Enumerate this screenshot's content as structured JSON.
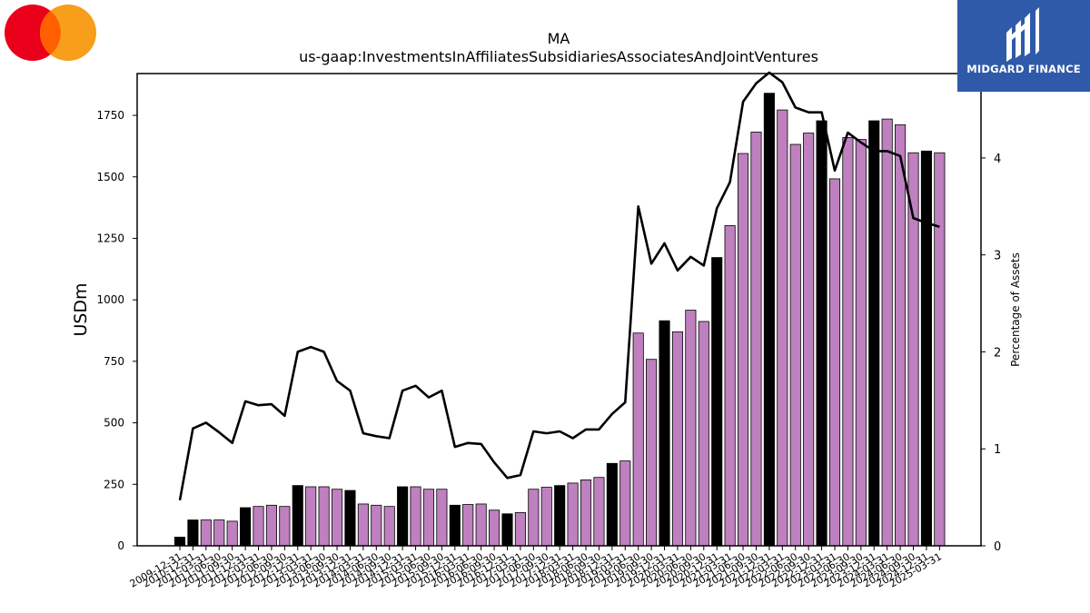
{
  "logo_left": {
    "icon": "mastercard-logo-icon",
    "colors": {
      "left": "#eb001b",
      "right": "#f79e1b",
      "overlap": "#ff5f00"
    }
  },
  "brand": {
    "name": "MIDGARD FINANCE",
    "icon": "midgard-logo-icon",
    "background": "#2f5aaa"
  },
  "chart_data": {
    "type": "bar",
    "title": "MA",
    "subtitle": "us-gaap:InvestmentsInAffiliatesSubsidiariesAssociatesAndJointVentures",
    "ylabel": "USDm",
    "y2label": "Percentage of Assets",
    "ylim": [
      0,
      1920
    ],
    "y2lim": [
      0,
      4.87
    ],
    "yticks": [
      0,
      250,
      500,
      750,
      1000,
      1250,
      1500,
      1750
    ],
    "y2ticks": [
      0,
      1,
      2,
      3,
      4
    ],
    "grid": false,
    "legend": "none",
    "colors": {
      "annual_bar": "#000000",
      "quarter_bar": "#bf80bf",
      "line": "#000000"
    },
    "categories": [
      "2009-12-31",
      "2010-12-31",
      "2011-03-31",
      "2011-06-30",
      "2011-09-30",
      "2011-12-31",
      "2012-03-31",
      "2012-06-30",
      "2012-09-30",
      "2012-12-31",
      "2013-03-31",
      "2013-06-30",
      "2013-09-30",
      "2013-12-31",
      "2014-03-31",
      "2014-06-30",
      "2014-09-30",
      "2014-12-31",
      "2015-03-31",
      "2015-06-30",
      "2015-09-30",
      "2015-12-31",
      "2016-03-31",
      "2016-06-30",
      "2016-09-30",
      "2016-12-31",
      "2017-03-31",
      "2017-06-30",
      "2017-09-30",
      "2017-12-31",
      "2018-03-31",
      "2018-06-30",
      "2018-09-30",
      "2018-12-31",
      "2019-03-31",
      "2019-06-30",
      "2019-09-30",
      "2019-12-31",
      "2020-03-31",
      "2020-06-30",
      "2020-09-30",
      "2020-12-31",
      "2021-03-31",
      "2021-06-30",
      "2021-09-30",
      "2021-12-31",
      "2022-03-31",
      "2022-06-30",
      "2022-09-30",
      "2022-12-31",
      "2023-03-31",
      "2023-06-30",
      "2023-09-30",
      "2023-12-31",
      "2024-03-31",
      "2024-06-30",
      "2024-09-30",
      "2024-12-31",
      "2025-03-31"
    ],
    "series": [
      {
        "kind": "bar",
        "values": [
          35,
          105,
          105,
          105,
          100,
          155,
          160,
          165,
          160,
          245,
          240,
          240,
          230,
          225,
          170,
          165,
          160,
          240,
          240,
          230,
          230,
          165,
          168,
          170,
          145,
          130,
          135,
          230,
          238,
          245,
          255,
          268,
          278,
          335,
          345,
          865,
          758,
          915,
          870,
          958,
          912,
          1172,
          1302,
          1595,
          1682,
          1840,
          1772,
          1632,
          1678,
          1728,
          1492,
          1660,
          1652,
          1728,
          1735,
          1712,
          1598,
          1605,
          1598
        ],
        "annual": [
          true,
          true,
          false,
          false,
          false,
          true,
          false,
          false,
          false,
          true,
          false,
          false,
          false,
          true,
          false,
          false,
          false,
          true,
          false,
          false,
          false,
          true,
          false,
          false,
          false,
          true,
          false,
          false,
          false,
          true,
          false,
          false,
          false,
          true,
          false,
          false,
          false,
          true,
          false,
          false,
          false,
          true,
          false,
          false,
          false,
          true,
          false,
          false,
          false,
          true,
          false,
          false,
          false,
          true,
          false,
          false,
          false,
          true,
          false
        ]
      },
      {
        "kind": "line",
        "axis": "right",
        "values": [
          0.47,
          1.21,
          1.27,
          1.17,
          1.06,
          1.49,
          1.45,
          1.46,
          1.34,
          2.0,
          2.05,
          2.0,
          1.7,
          1.6,
          1.16,
          1.13,
          1.11,
          1.6,
          1.65,
          1.53,
          1.6,
          1.02,
          1.06,
          1.05,
          0.86,
          0.7,
          0.73,
          1.18,
          1.16,
          1.18,
          1.11,
          1.2,
          1.2,
          1.36,
          1.48,
          3.5,
          2.91,
          3.12,
          2.84,
          2.98,
          2.89,
          3.48,
          3.75,
          4.58,
          4.77,
          4.88,
          4.78,
          4.52,
          4.47,
          4.47,
          3.87,
          4.26,
          4.16,
          4.07,
          4.07,
          4.02,
          3.38,
          3.33,
          3.29
        ]
      }
    ]
  }
}
